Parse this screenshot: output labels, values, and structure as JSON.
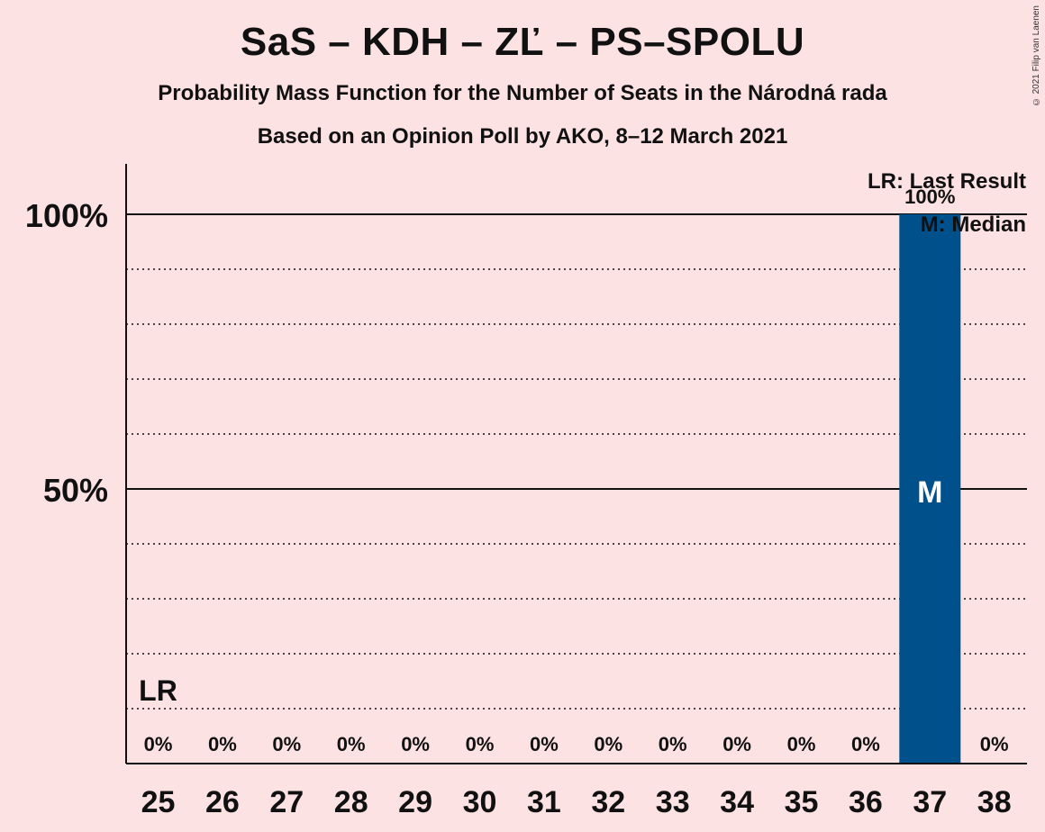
{
  "title": "SaS – KDH – ZĽ – PS–SPOLU",
  "subtitle": "Probability Mass Function for the Number of Seats in the Národná rada",
  "subtitle2": "Based on an Opinion Poll by AKO, 8–12 March 2021",
  "copyright": "© 2021 Filip van Laenen",
  "colors": {
    "background": "#FDE2E4",
    "bar": "#00508C",
    "text": "#111111"
  },
  "legend": {
    "lr": "LR: Last Result",
    "median": "M: Median"
  },
  "chart_data": {
    "type": "bar",
    "categories": [
      "25",
      "26",
      "27",
      "28",
      "29",
      "30",
      "31",
      "32",
      "33",
      "34",
      "35",
      "36",
      "37",
      "38"
    ],
    "values": [
      0,
      0,
      0,
      0,
      0,
      0,
      0,
      0,
      0,
      0,
      0,
      0,
      100,
      0
    ],
    "data_labels": [
      "0%",
      "0%",
      "0%",
      "0%",
      "0%",
      "0%",
      "0%",
      "0%",
      "0%",
      "0%",
      "0%",
      "0%",
      "100%",
      "0%"
    ],
    "ylim": [
      0,
      100
    ],
    "yticks": [
      {
        "value": 50,
        "label": "50%"
      },
      {
        "value": 100,
        "label": "100%"
      }
    ],
    "minor_grid": [
      10,
      20,
      30,
      40,
      60,
      70,
      80,
      90
    ],
    "last_result": {
      "category": "25",
      "label": "LR"
    },
    "median": {
      "category": "37",
      "label": "M"
    },
    "legend_position": "top-right"
  }
}
